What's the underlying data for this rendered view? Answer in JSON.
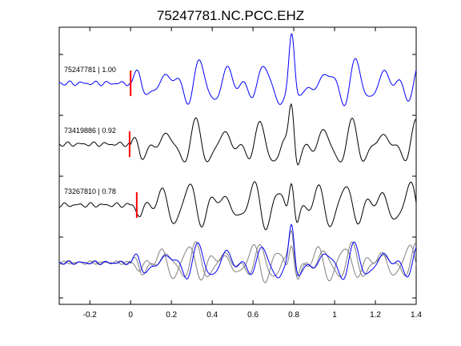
{
  "chart_data": {
    "type": "line",
    "title": "75247781.NC.PCC.EHZ",
    "xlabel": "",
    "ylabel": "",
    "xlim": [
      -0.35,
      1.4
    ],
    "xticks": [
      -0.2,
      0,
      0.2,
      0.4,
      0.6,
      0.8,
      1,
      1.2,
      1.4
    ],
    "xtick_labels": [
      "-0.2",
      "0",
      "0.2",
      "0.4",
      "0.6",
      "0.8",
      "1",
      "1.2",
      "1.4"
    ],
    "grid": false,
    "panels": [
      {
        "label": "75247781 | 1.00",
        "pick_time": 0.0,
        "color": "#0000ff"
      },
      {
        "label": "73419886 | 0.92",
        "pick_time": -0.005,
        "color": "#000000"
      },
      {
        "label": "73267810 | 0.78",
        "pick_time": 0.03,
        "color": "#000000"
      }
    ],
    "pick_color": "#ff0000",
    "overlay_colors": [
      "#808080",
      "#808080",
      "#0000ff"
    ]
  }
}
